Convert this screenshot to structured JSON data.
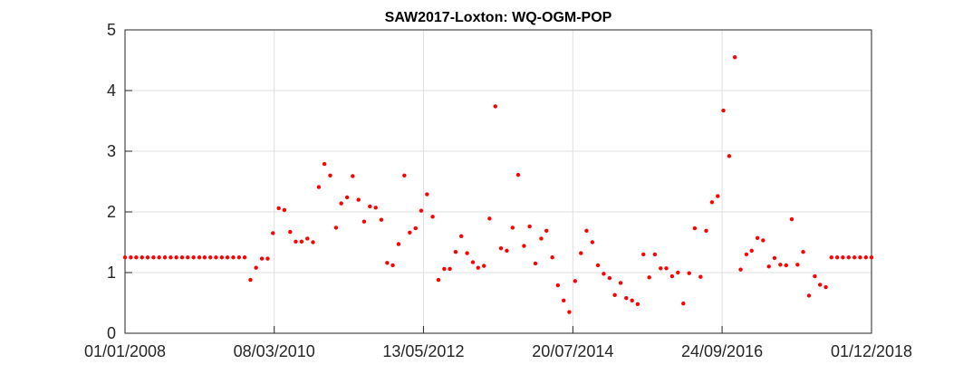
{
  "chart_data": {
    "type": "scatter",
    "title": "SAW2017-Loxton: WQ-OGM-POP",
    "color": "#ff0000",
    "grid": true,
    "xlim": [
      "2008-01-01",
      "2018-12-01"
    ],
    "xticks": [
      {
        "value": "2008-01-01",
        "label": "01/01/2008"
      },
      {
        "value": "2010-03-08",
        "label": "08/03/2010"
      },
      {
        "value": "2012-05-13",
        "label": "13/05/2012"
      },
      {
        "value": "2014-07-20",
        "label": "20/07/2014"
      },
      {
        "value": "2016-09-24",
        "label": "24/09/2016"
      },
      {
        "value": "2018-12-01",
        "label": "01/12/2018"
      }
    ],
    "ylim": [
      0,
      5
    ],
    "yticks": [
      0,
      1,
      2,
      3,
      4,
      5
    ],
    "x": [
      "2008-01-01",
      "2008-02-01",
      "2008-03-01",
      "2008-04-01",
      "2008-05-01",
      "2008-06-01",
      "2008-07-01",
      "2008-08-01",
      "2008-09-01",
      "2008-10-01",
      "2008-11-01",
      "2008-12-01",
      "2009-01-01",
      "2009-02-01",
      "2009-03-01",
      "2009-04-01",
      "2009-05-01",
      "2009-06-01",
      "2009-07-01",
      "2009-08-01",
      "2009-09-01",
      "2009-10-01",
      "2009-11-01",
      "2009-12-01",
      "2010-01-01",
      "2010-02-01",
      "2010-03-01",
      "2010-04-01",
      "2010-05-01",
      "2010-06-01",
      "2010-07-01",
      "2010-08-01",
      "2010-09-01",
      "2010-10-01",
      "2010-11-01",
      "2010-12-01",
      "2011-01-01",
      "2011-02-01",
      "2011-03-01",
      "2011-04-01",
      "2011-05-01",
      "2011-06-01",
      "2011-07-01",
      "2011-08-01",
      "2011-09-01",
      "2011-10-01",
      "2011-11-01",
      "2011-12-01",
      "2012-01-01",
      "2012-02-01",
      "2012-03-01",
      "2012-04-01",
      "2012-05-01",
      "2012-06-01",
      "2012-07-01",
      "2012-08-01",
      "2012-09-01",
      "2012-10-01",
      "2012-11-01",
      "2012-12-01",
      "2013-01-01",
      "2013-02-01",
      "2013-03-01",
      "2013-04-01",
      "2013-05-01",
      "2013-06-01",
      "2013-07-01",
      "2013-08-01",
      "2013-09-01",
      "2013-10-01",
      "2013-11-01",
      "2013-12-01",
      "2014-01-01",
      "2014-02-01",
      "2014-03-01",
      "2014-04-01",
      "2014-05-01",
      "2014-06-01",
      "2014-07-01",
      "2014-08-01",
      "2014-09-01",
      "2014-10-01",
      "2014-11-01",
      "2014-12-01",
      "2015-01-01",
      "2015-02-01",
      "2015-03-01",
      "2015-04-01",
      "2015-05-01",
      "2015-06-01",
      "2015-07-01",
      "2015-08-01",
      "2015-09-01",
      "2015-10-01",
      "2015-11-01",
      "2015-12-01",
      "2016-01-01",
      "2016-02-01",
      "2016-03-01",
      "2016-04-01",
      "2016-05-01",
      "2016-06-01",
      "2016-07-01",
      "2016-08-01",
      "2016-09-01",
      "2016-10-01",
      "2016-11-01",
      "2016-12-01",
      "2017-01-01",
      "2017-02-01",
      "2017-03-01",
      "2017-04-01",
      "2017-05-01",
      "2017-06-01",
      "2017-07-01",
      "2017-08-01",
      "2017-09-01",
      "2017-10-01",
      "2017-11-01",
      "2017-12-01",
      "2018-01-01",
      "2018-02-01",
      "2018-03-01",
      "2018-04-01",
      "2018-05-01",
      "2018-06-01",
      "2018-07-01",
      "2018-08-01",
      "2018-09-01",
      "2018-10-01",
      "2018-11-01",
      "2018-12-01"
    ],
    "values": [
      1.25,
      1.25,
      1.25,
      1.25,
      1.25,
      1.25,
      1.25,
      1.25,
      1.25,
      1.25,
      1.25,
      1.25,
      1.25,
      1.25,
      1.25,
      1.25,
      1.25,
      1.25,
      1.25,
      1.25,
      1.25,
      1.25,
      0.88,
      1.08,
      1.23,
      1.23,
      1.65,
      2.06,
      2.03,
      1.67,
      1.51,
      1.51,
      1.56,
      1.5,
      2.41,
      2.79,
      2.6,
      1.74,
      2.14,
      2.24,
      2.59,
      2.2,
      1.84,
      2.09,
      2.07,
      1.87,
      1.16,
      1.12,
      1.47,
      2.6,
      1.66,
      1.73,
      2.02,
      2.29,
      1.92,
      0.88,
      1.06,
      1.06,
      1.34,
      1.6,
      1.32,
      1.17,
      1.08,
      1.11,
      1.89,
      3.74,
      1.4,
      1.36,
      1.74,
      2.61,
      1.44,
      1.76,
      1.15,
      1.56,
      1.69,
      1.25,
      0.79,
      0.54,
      0.35,
      0.86,
      1.32,
      1.69,
      1.5,
      1.12,
      0.98,
      0.91,
      0.63,
      0.83,
      0.58,
      0.54,
      0.48,
      1.3,
      0.92,
      1.3,
      1.07,
      1.07,
      0.94,
      1.0,
      0.49,
      0.99,
      1.73,
      0.93,
      1.69,
      2.16,
      2.26,
      3.67,
      2.92,
      4.55,
      1.05,
      1.3,
      1.36,
      1.57,
      1.53,
      1.1,
      1.24,
      1.13,
      1.12,
      1.88,
      1.13,
      1.34,
      0.62,
      0.94,
      0.8,
      0.76,
      1.25,
      1.25,
      1.25,
      1.25,
      1.25,
      1.25,
      1.25,
      1.25
    ]
  }
}
